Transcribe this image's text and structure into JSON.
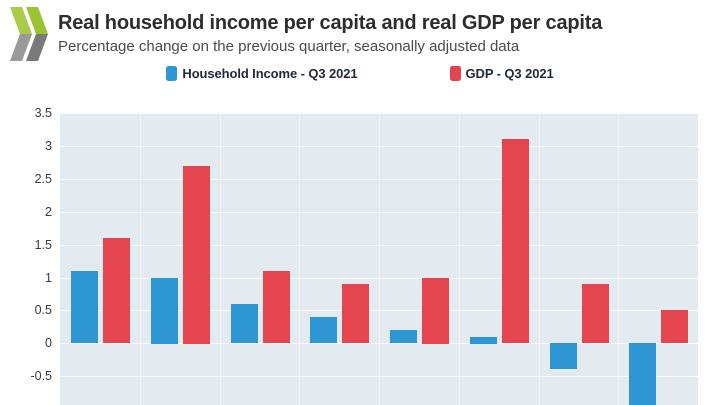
{
  "header": {
    "title": "Real household income per capita and real GDP per capita",
    "subtitle": "Percentage change on the previous quarter, seasonally adjusted data",
    "logo": "oecd-chevrons-logo"
  },
  "legend": {
    "items": [
      {
        "label": "Household Income - Q3 2021",
        "color": "#2E96D3"
      },
      {
        "label": "GDP - Q3 2021",
        "color": "#E5454F"
      }
    ]
  },
  "chart_data": {
    "type": "bar",
    "title": "Real household income per capita and real GDP per capita",
    "subtitle": "Percentage change on the previous quarter, seasonally adjusted data",
    "categories": [
      "",
      "",
      "",
      "",
      "",
      "",
      "",
      ""
    ],
    "categories_note": "x-axis category labels are cropped out of the visible screenshot area",
    "series": [
      {
        "name": "Household Income - Q3 2021",
        "color": "#2E96D3",
        "values": [
          1.1,
          1.0,
          0.6,
          0.4,
          0.2,
          0.1,
          -0.4,
          -1.0
        ]
      },
      {
        "name": "GDP - Q3 2021",
        "color": "#E5454F",
        "values": [
          1.6,
          2.7,
          1.1,
          0.9,
          1.0,
          3.1,
          0.9,
          0.5
        ]
      }
    ],
    "yticks": [
      "3.5",
      "3",
      "2.5",
      "2",
      "1.5",
      "1",
      "0.5",
      "0",
      "-0.5"
    ],
    "ytick_values": [
      3.5,
      3,
      2.5,
      2,
      1.5,
      1,
      0.5,
      0,
      -0.5
    ],
    "ylim_visible": [
      -0.94,
      3.5
    ],
    "grid": true,
    "legend_position": "top",
    "plot_bg": "#E3EAF0",
    "clipped_bars": [
      {
        "series_index": 0,
        "category_index": 7,
        "note": "blue bar extends below the cropped bottom edge; visible portion reaches about -0.9"
      }
    ],
    "logo_colors": {
      "green_1": "#A9CB47",
      "green_2": "#9CC431",
      "gray_1": "#9A9A9A",
      "gray_2": "#7A7A7A"
    }
  }
}
